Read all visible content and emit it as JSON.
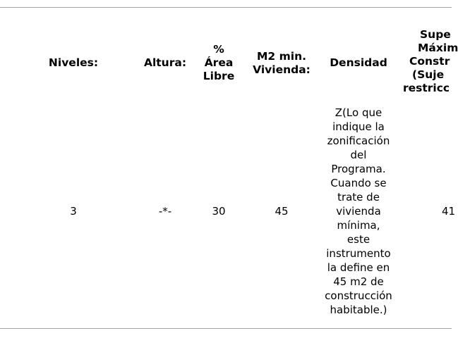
{
  "table": {
    "headers": [
      {
        "key": "niveles",
        "lines": [
          "Niveles:"
        ]
      },
      {
        "key": "altura",
        "lines": [
          "Altura:"
        ]
      },
      {
        "key": "area_libre",
        "lines": [
          "%",
          "Área",
          "Libre"
        ]
      },
      {
        "key": "m2_min",
        "lines": [
          "M2 min.",
          "Vivienda:"
        ]
      },
      {
        "key": "densidad",
        "lines": [
          "Densidad"
        ]
      },
      {
        "key": "superficie",
        "lines": [
          "Supe",
          "Máxim",
          "Constr",
          "(Suje",
          "restricc"
        ]
      }
    ],
    "row": {
      "niveles": "3",
      "altura": "-*-",
      "area_libre": "30",
      "m2_min": "45",
      "densidad_lines": [
        "Z(Lo que",
        "indique la",
        "zonificación",
        "del",
        "Programa.",
        "Cuando se",
        "trate de",
        "vivienda",
        "mínima,",
        "este",
        "instrumento",
        "la define en",
        "45 m2 de",
        "construcción",
        "habitable.)"
      ],
      "superficie": "41"
    }
  }
}
